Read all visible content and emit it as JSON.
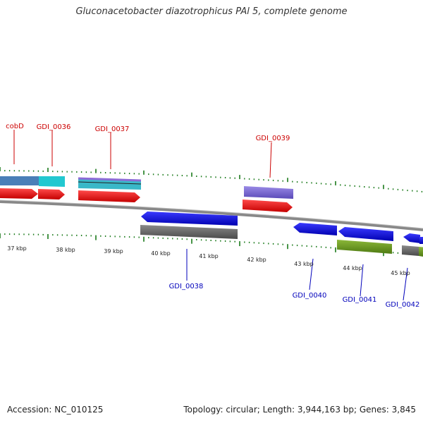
{
  "title": "Gluconacetobacter diazotrophicus PAl 5, complete genome",
  "footer": {
    "accession": "Accession: NC_010125",
    "summary": "Topology: circular; Length: 3,944,163 bp; Genes: 3,845"
  },
  "scale_labels": [
    "37 kbp",
    "38 kbp",
    "39 kbp",
    "40 kbp",
    "41 kbp",
    "42 kbp",
    "43 kbp",
    "44 kbp",
    "45 kbp"
  ],
  "gene_labels_top": [
    "cobD",
    "GDI_0036",
    "GDI_0037",
    "GDI_0039"
  ],
  "gene_labels_bottom": [
    "GDI_0038",
    "GDI_0040",
    "GDI_0041",
    "GDI_0042"
  ],
  "colors": {
    "forward_label": "#cc0000",
    "reverse_label": "#0000bb",
    "forward_gene": "#ee1111",
    "reverse_gene": "#1111dd",
    "tick": "#1a7a1a",
    "backbone": "#888888"
  }
}
